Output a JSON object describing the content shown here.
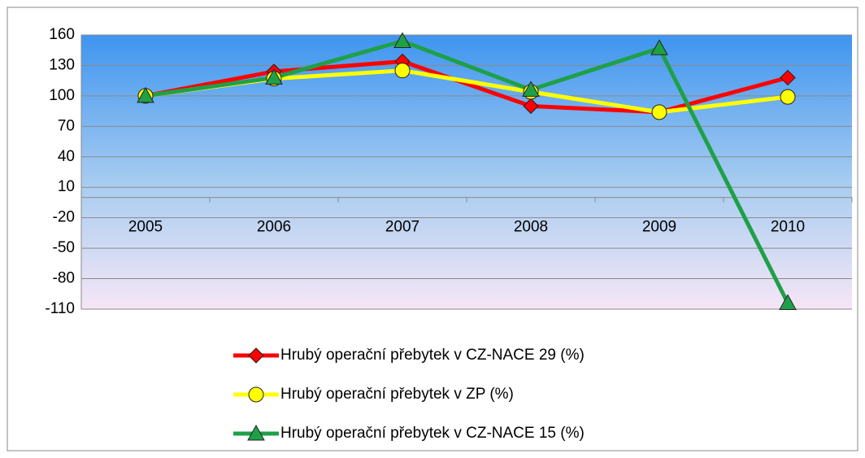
{
  "chart_data": {
    "type": "line",
    "categories": [
      "2005",
      "2006",
      "2007",
      "2008",
      "2009",
      "2010"
    ],
    "series": [
      {
        "name": "Hrubý operační přebytek v CZ-NACE 29 (%)",
        "color": "#ff0000",
        "marker": "diamond",
        "values": [
          100,
          124,
          134,
          90,
          84,
          118
        ]
      },
      {
        "name": "Hrubý operační přebytek v ZP (%)",
        "color": "#ffff00",
        "marker": "circle",
        "values": [
          100,
          117,
          125,
          104,
          84,
          99
        ]
      },
      {
        "name": "Hrubý operační přebytek v CZ-NACE 15 (%)",
        "color": "#1fa048",
        "marker": "triangle",
        "values": [
          100,
          118,
          154,
          106,
          147,
          -104
        ]
      }
    ],
    "ylim": [
      -110,
      160
    ],
    "yticks": [
      160,
      130,
      100,
      70,
      40,
      10,
      -20,
      -50,
      -80,
      -110
    ],
    "grid": true,
    "legend": "bottom"
  }
}
